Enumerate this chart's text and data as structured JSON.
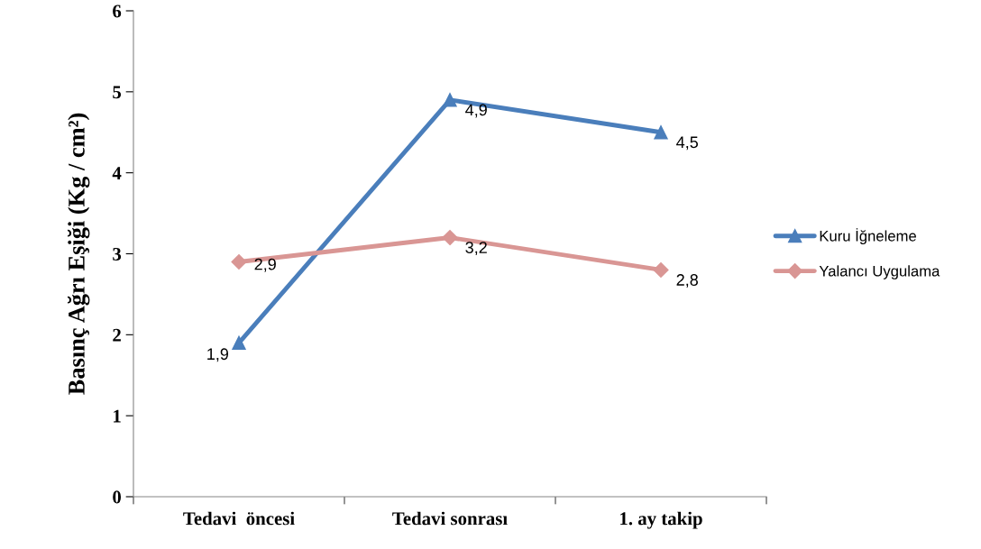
{
  "chart_data": {
    "type": "line",
    "ylabel": "Basınç Ağrı Eşiği (Kg / cm²)",
    "categories": [
      "Tedavi  öncesi",
      "Tedavi sonrası",
      "1. ay takip"
    ],
    "series": [
      {
        "name": "Kuru İğneleme",
        "color": "#4a7ebb",
        "marker": "triangle",
        "values": [
          1.9,
          4.9,
          4.5
        ],
        "value_labels": [
          "1,9",
          "4,9",
          "4,5"
        ]
      },
      {
        "name": "Yalancı Uygulama",
        "color": "#d99694",
        "marker": "diamond",
        "values": [
          2.9,
          3.2,
          2.8
        ],
        "value_labels": [
          "2,9",
          "3,2",
          "2,8"
        ]
      }
    ],
    "ylim": [
      0,
      6
    ],
    "yticks": [
      0,
      1,
      2,
      3,
      4,
      5,
      6
    ],
    "grid": false,
    "legend": "right",
    "line_style": "solid"
  }
}
